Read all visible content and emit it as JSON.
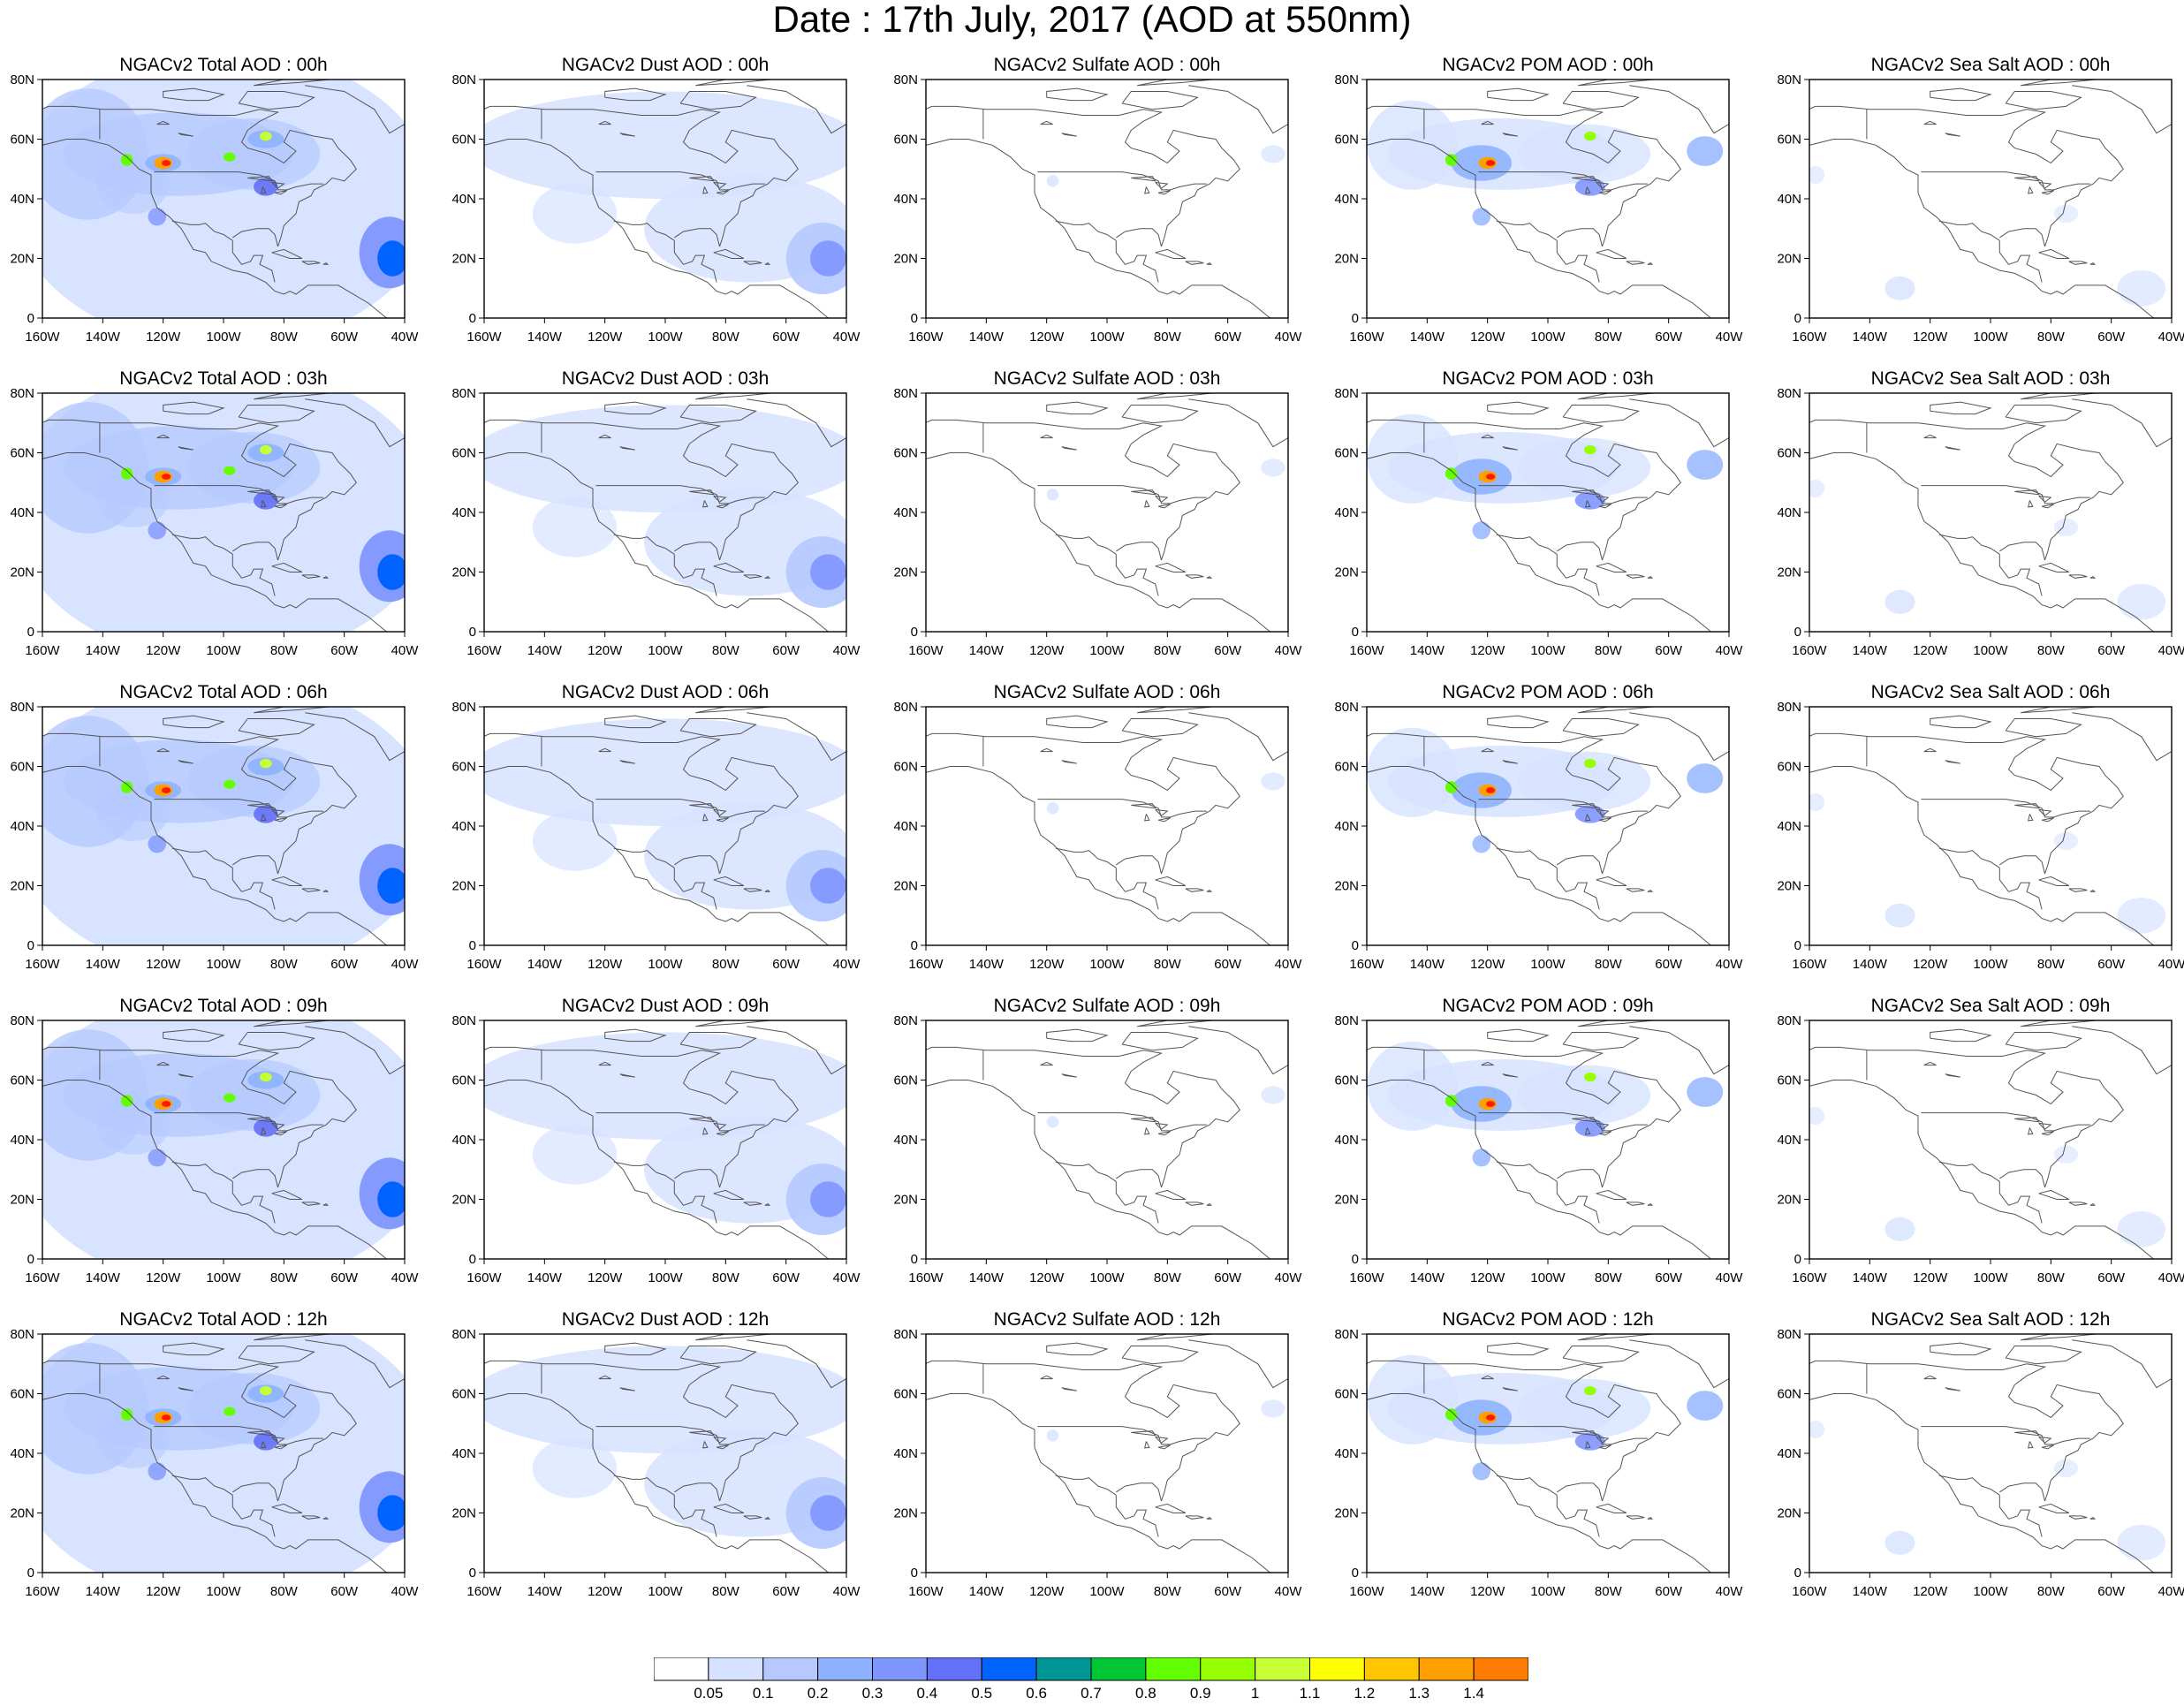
{
  "page": {
    "title": "Date : 17th July, 2017 (AOD at 550nm)"
  },
  "axes": {
    "lon_ticks": [
      "160W",
      "140W",
      "120W",
      "100W",
      "80W",
      "60W",
      "40W"
    ],
    "lat_ticks": [
      "0",
      "20N",
      "40N",
      "60N",
      "80N"
    ],
    "lon_range": [
      -160,
      -40
    ],
    "lat_range": [
      0,
      80
    ]
  },
  "panels": [
    [
      {
        "title": "NGACv2 Total AOD : 00h",
        "species": "total"
      },
      {
        "title": "NGACv2 Dust AOD : 00h",
        "species": "dust"
      },
      {
        "title": "NGACv2 Sulfate AOD : 00h",
        "species": "sulfate"
      },
      {
        "title": "NGACv2 POM AOD : 00h",
        "species": "pom"
      },
      {
        "title": "NGACv2 Sea Salt AOD : 00h",
        "species": "seasalt"
      }
    ],
    [
      {
        "title": "NGACv2 Total AOD : 03h",
        "species": "total"
      },
      {
        "title": "NGACv2 Dust AOD : 03h",
        "species": "dust"
      },
      {
        "title": "NGACv2 Sulfate AOD : 03h",
        "species": "sulfate"
      },
      {
        "title": "NGACv2 POM AOD : 03h",
        "species": "pom"
      },
      {
        "title": "NGACv2 Sea Salt AOD : 03h",
        "species": "seasalt"
      }
    ],
    [
      {
        "title": "NGACv2 Total AOD : 06h",
        "species": "total"
      },
      {
        "title": "NGACv2 Dust AOD : 06h",
        "species": "dust"
      },
      {
        "title": "NGACv2 Sulfate AOD : 06h",
        "species": "sulfate"
      },
      {
        "title": "NGACv2 POM AOD : 06h",
        "species": "pom"
      },
      {
        "title": "NGACv2 Sea Salt AOD : 06h",
        "species": "seasalt"
      }
    ],
    [
      {
        "title": "NGACv2 Total AOD : 09h",
        "species": "total"
      },
      {
        "title": "NGACv2 Dust AOD : 09h",
        "species": "dust"
      },
      {
        "title": "NGACv2 Sulfate AOD : 09h",
        "species": "sulfate"
      },
      {
        "title": "NGACv2 POM AOD : 09h",
        "species": "pom"
      },
      {
        "title": "NGACv2 Sea Salt  AOD : 09h",
        "species": "seasalt"
      }
    ],
    [
      {
        "title": "NGACv2 Total AOD  : 12h",
        "species": "total"
      },
      {
        "title": "NGACv2 Dust AOD : 12h",
        "species": "dust"
      },
      {
        "title": "NGACv2 Sulfate AOD : 12h",
        "species": "sulfate"
      },
      {
        "title": "NGACv2 POM  AOD : 12h",
        "species": "pom"
      },
      {
        "title": "NGACv2 Sea Salt  AOD : 12h",
        "species": "seasalt"
      }
    ]
  ],
  "colorbar": {
    "labels": [
      "0.05",
      "0.1",
      "0.2",
      "0.3",
      "0.4",
      "0.5",
      "0.6",
      "0.7",
      "0.8",
      "0.9",
      "1",
      "1.1",
      "1.2",
      "1.3",
      "1.4"
    ],
    "colors": [
      "#ffffff",
      "#d6e2ff",
      "#b5c9ff",
      "#8eb2ff",
      "#7f96ff",
      "#6370f8",
      "#0063ff",
      "#009696",
      "#00c633",
      "#63ff00",
      "#96ff00",
      "#c6ff33",
      "#ffff00",
      "#ffc600",
      "#ffa000",
      "#ff7c00",
      "#ff1900"
    ]
  }
}
